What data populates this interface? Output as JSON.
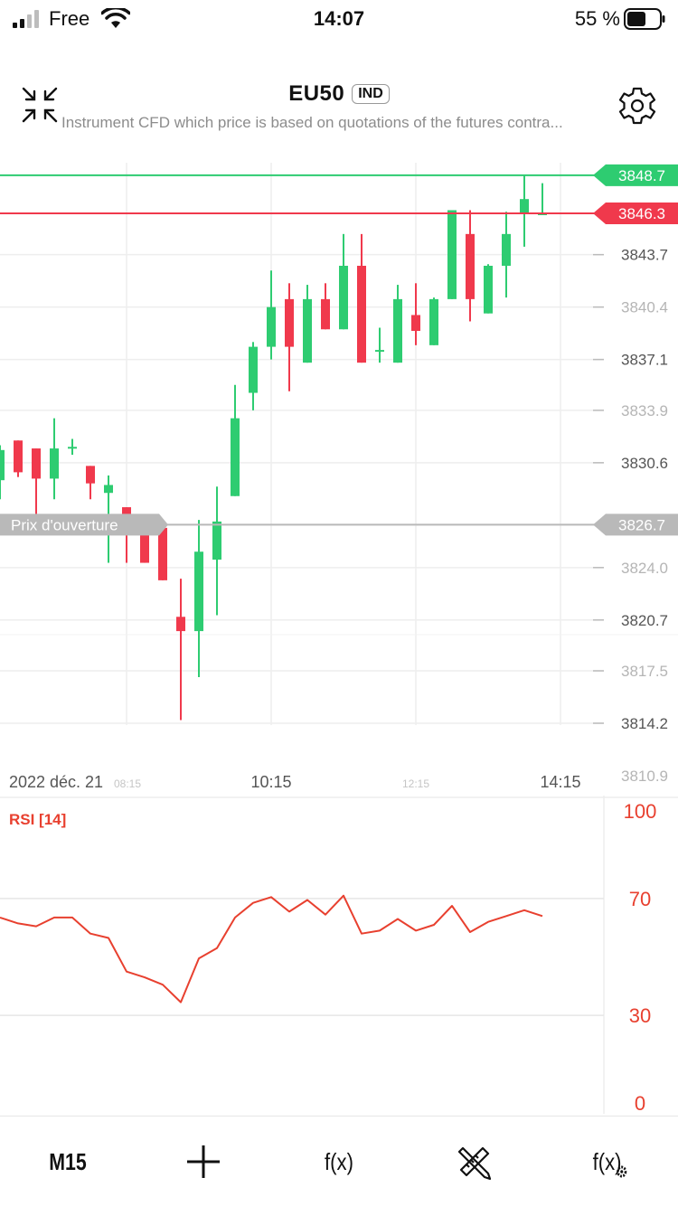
{
  "status_bar": {
    "carrier": "Free",
    "time": "14:07",
    "battery_percent": "55 %"
  },
  "header": {
    "symbol": "EU50",
    "badge": "IND",
    "description": "Instrument CFD which price is based on quotations of the futures contra..."
  },
  "colors": {
    "up": "#2ecc71",
    "down": "#f0394c",
    "open_line": "#b9b9b9",
    "rsi_line": "#e8402f",
    "grid": "#eeeeee",
    "axis_text": "#aaaaaa"
  },
  "icons": [
    "collapse-icon",
    "gear-icon",
    "plus-icon",
    "drawing-tools-icon",
    "indicator-settings-icon"
  ],
  "chart_data": [
    {
      "type": "candlestick",
      "y_ticks": [
        "3843.7",
        "3840.4",
        "3837.1",
        "3833.9",
        "3830.6",
        "3824.0",
        "3820.7",
        "3817.5",
        "3814.2",
        "3810.9"
      ],
      "x_labels": [
        {
          "text": "2022 déc. 21"
        },
        {
          "text": "08:15"
        },
        {
          "text": "10:15"
        },
        {
          "text": "12:15"
        },
        {
          "text": "14:15"
        }
      ],
      "price_lines": [
        {
          "label": "3848.7",
          "value": 3848.7,
          "color": "#2ecc71"
        },
        {
          "label": "3846.3",
          "value": 3846.3,
          "color": "#f0394c"
        },
        {
          "label": "3826.7",
          "value": 3826.7,
          "color": "#b9b9b9",
          "name": "Prix d'ouverture"
        }
      ],
      "candles": [
        {
          "o": 3829.5,
          "h": 3831.7,
          "l": 3828.3,
          "c": 3831.4
        },
        {
          "o": 3832.0,
          "h": 3832.0,
          "l": 3829.7,
          "c": 3830.0
        },
        {
          "o": 3831.5,
          "h": 3831.5,
          "l": 3826.3,
          "c": 3829.6
        },
        {
          "o": 3829.6,
          "h": 3833.4,
          "l": 3828.3,
          "c": 3831.5
        },
        {
          "o": 3831.6,
          "h": 3832.1,
          "l": 3831.1,
          "c": 3831.6
        },
        {
          "o": 3830.4,
          "h": 3830.4,
          "l": 3828.3,
          "c": 3829.3
        },
        {
          "o": 3828.7,
          "h": 3829.8,
          "l": 3824.3,
          "c": 3829.2
        },
        {
          "o": 3827.8,
          "h": 3827.8,
          "l": 3824.3,
          "c": 3826.5
        },
        {
          "o": 3827.2,
          "h": 3827.2,
          "l": 3824.3,
          "c": 3824.3
        },
        {
          "o": 3826.5,
          "h": 3826.9,
          "l": 3823.2,
          "c": 3823.2
        },
        {
          "o": 3820.9,
          "h": 3823.3,
          "l": 3814.4,
          "c": 3820.0
        },
        {
          "o": 3820.0,
          "h": 3827.0,
          "l": 3817.1,
          "c": 3825.0
        },
        {
          "o": 3824.5,
          "h": 3829.1,
          "l": 3821.0,
          "c": 3826.9
        },
        {
          "o": 3828.5,
          "h": 3835.5,
          "l": 3828.5,
          "c": 3833.4
        },
        {
          "o": 3835.0,
          "h": 3838.2,
          "l": 3833.9,
          "c": 3837.9
        },
        {
          "o": 3837.9,
          "h": 3842.7,
          "l": 3837.1,
          "c": 3840.4
        },
        {
          "o": 3840.9,
          "h": 3841.9,
          "l": 3835.1,
          "c": 3837.9
        },
        {
          "o": 3836.9,
          "h": 3841.8,
          "l": 3836.9,
          "c": 3840.9
        },
        {
          "o": 3840.9,
          "h": 3841.9,
          "l": 3839.0,
          "c": 3839.0
        },
        {
          "o": 3839.0,
          "h": 3845.0,
          "l": 3839.0,
          "c": 3843.0
        },
        {
          "o": 3843.0,
          "h": 3845.0,
          "l": 3836.9,
          "c": 3836.9
        },
        {
          "o": 3837.7,
          "h": 3839.1,
          "l": 3836.9,
          "c": 3837.7
        },
        {
          "o": 3836.9,
          "h": 3841.8,
          "l": 3836.9,
          "c": 3840.9
        },
        {
          "o": 3839.9,
          "h": 3841.9,
          "l": 3838.0,
          "c": 3838.9
        },
        {
          "o": 3838.0,
          "h": 3841.0,
          "l": 3838.0,
          "c": 3840.9
        },
        {
          "o": 3840.9,
          "h": 3846.5,
          "l": 3840.9,
          "c": 3846.5
        },
        {
          "o": 3845.0,
          "h": 3846.5,
          "l": 3839.5,
          "c": 3840.9
        },
        {
          "o": 3840.0,
          "h": 3843.1,
          "l": 3840.0,
          "c": 3843.0
        },
        {
          "o": 3843.0,
          "h": 3846.4,
          "l": 3841.0,
          "c": 3845.0
        },
        {
          "o": 3846.3,
          "h": 3848.7,
          "l": 3844.2,
          "c": 3847.2
        },
        {
          "o": 3846.3,
          "h": 3848.2,
          "l": 3846.3,
          "c": 3846.3
        }
      ]
    },
    {
      "type": "line",
      "title": "RSI [14]",
      "y_ticks": [
        "100",
        "70",
        "30",
        "0"
      ],
      "ylim": [
        0,
        100
      ],
      "values": [
        63.5,
        61.5,
        60.5,
        63.5,
        63.5,
        58,
        56.5,
        45,
        43,
        40.5,
        34.5,
        49.5,
        53,
        63.5,
        68.5,
        70.5,
        65.5,
        69.5,
        64.5,
        71,
        58,
        59,
        63,
        59,
        61,
        67.5,
        58.5,
        62,
        64,
        66,
        64
      ]
    }
  ],
  "toolbar": {
    "timeframe": "M15",
    "fx_label": "f(x)",
    "fx2_label": "f(x)"
  }
}
